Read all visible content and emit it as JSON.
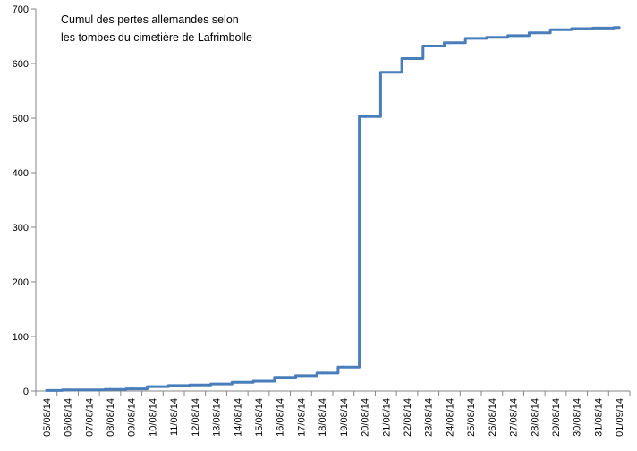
{
  "chart_data": {
    "type": "line",
    "title_lines": [
      "Cumul des pertes allemandes selon",
      "les tombes du cimetière de Lafrimbolle"
    ],
    "xlabel": "",
    "ylabel": "",
    "ylim": [
      0,
      700
    ],
    "yticks": [
      0,
      100,
      200,
      300,
      400,
      500,
      600,
      700
    ],
    "grid": false,
    "legend": "none",
    "line_style": "step",
    "colors": {
      "series": "#4a7ebb",
      "axis": "#868686",
      "text": "#000000"
    },
    "categories": [
      "05/08/14",
      "06/08/14",
      "07/08/14",
      "08/08/14",
      "09/08/14",
      "10/08/14",
      "11/08/14",
      "12/08/14",
      "13/08/14",
      "14/08/14",
      "15/08/14",
      "16/08/14",
      "17/08/14",
      "18/08/14",
      "19/08/14",
      "20/08/14",
      "21/08/14",
      "22/08/14",
      "23/08/14",
      "24/08/14",
      "25/08/14",
      "26/08/14",
      "27/08/14",
      "28/08/14",
      "29/08/14",
      "30/08/14",
      "31/08/14",
      "01/09/14"
    ],
    "series": [
      {
        "points": [
          {
            "x": "05/08/14",
            "y": 1
          },
          {
            "x": "06/08/14",
            "y": 2
          },
          {
            "x": "08/08/14",
            "y": 3
          },
          {
            "x": "09/08/14",
            "y": 4
          },
          {
            "x": "10/08/14",
            "y": 8
          },
          {
            "x": "11/08/14",
            "y": 10
          },
          {
            "x": "12/08/14",
            "y": 11
          },
          {
            "x": "13/08/14",
            "y": 13
          },
          {
            "x": "14/08/14",
            "y": 16
          },
          {
            "x": "15/08/14",
            "y": 18
          },
          {
            "x": "16/08/14",
            "y": 25
          },
          {
            "x": "17/08/14",
            "y": 28
          },
          {
            "x": "18/08/14",
            "y": 33
          },
          {
            "x": "19/08/14",
            "y": 44
          },
          {
            "x": "20/08/14",
            "y": 503
          },
          {
            "x": "21/08/14",
            "y": 584
          },
          {
            "x": "22/08/14",
            "y": 609
          },
          {
            "x": "23/08/14",
            "y": 632
          },
          {
            "x": "24/08/14",
            "y": 638
          },
          {
            "x": "25/08/14",
            "y": 646
          },
          {
            "x": "26/08/14",
            "y": 648
          },
          {
            "x": "27/08/14",
            "y": 651
          },
          {
            "x": "28/08/14",
            "y": 656
          },
          {
            "x": "29/08/14",
            "y": 662
          },
          {
            "x": "30/08/14",
            "y": 664
          },
          {
            "x": "31/08/14",
            "y": 665
          },
          {
            "x": "01/09/14",
            "y": 666
          }
        ]
      }
    ]
  }
}
